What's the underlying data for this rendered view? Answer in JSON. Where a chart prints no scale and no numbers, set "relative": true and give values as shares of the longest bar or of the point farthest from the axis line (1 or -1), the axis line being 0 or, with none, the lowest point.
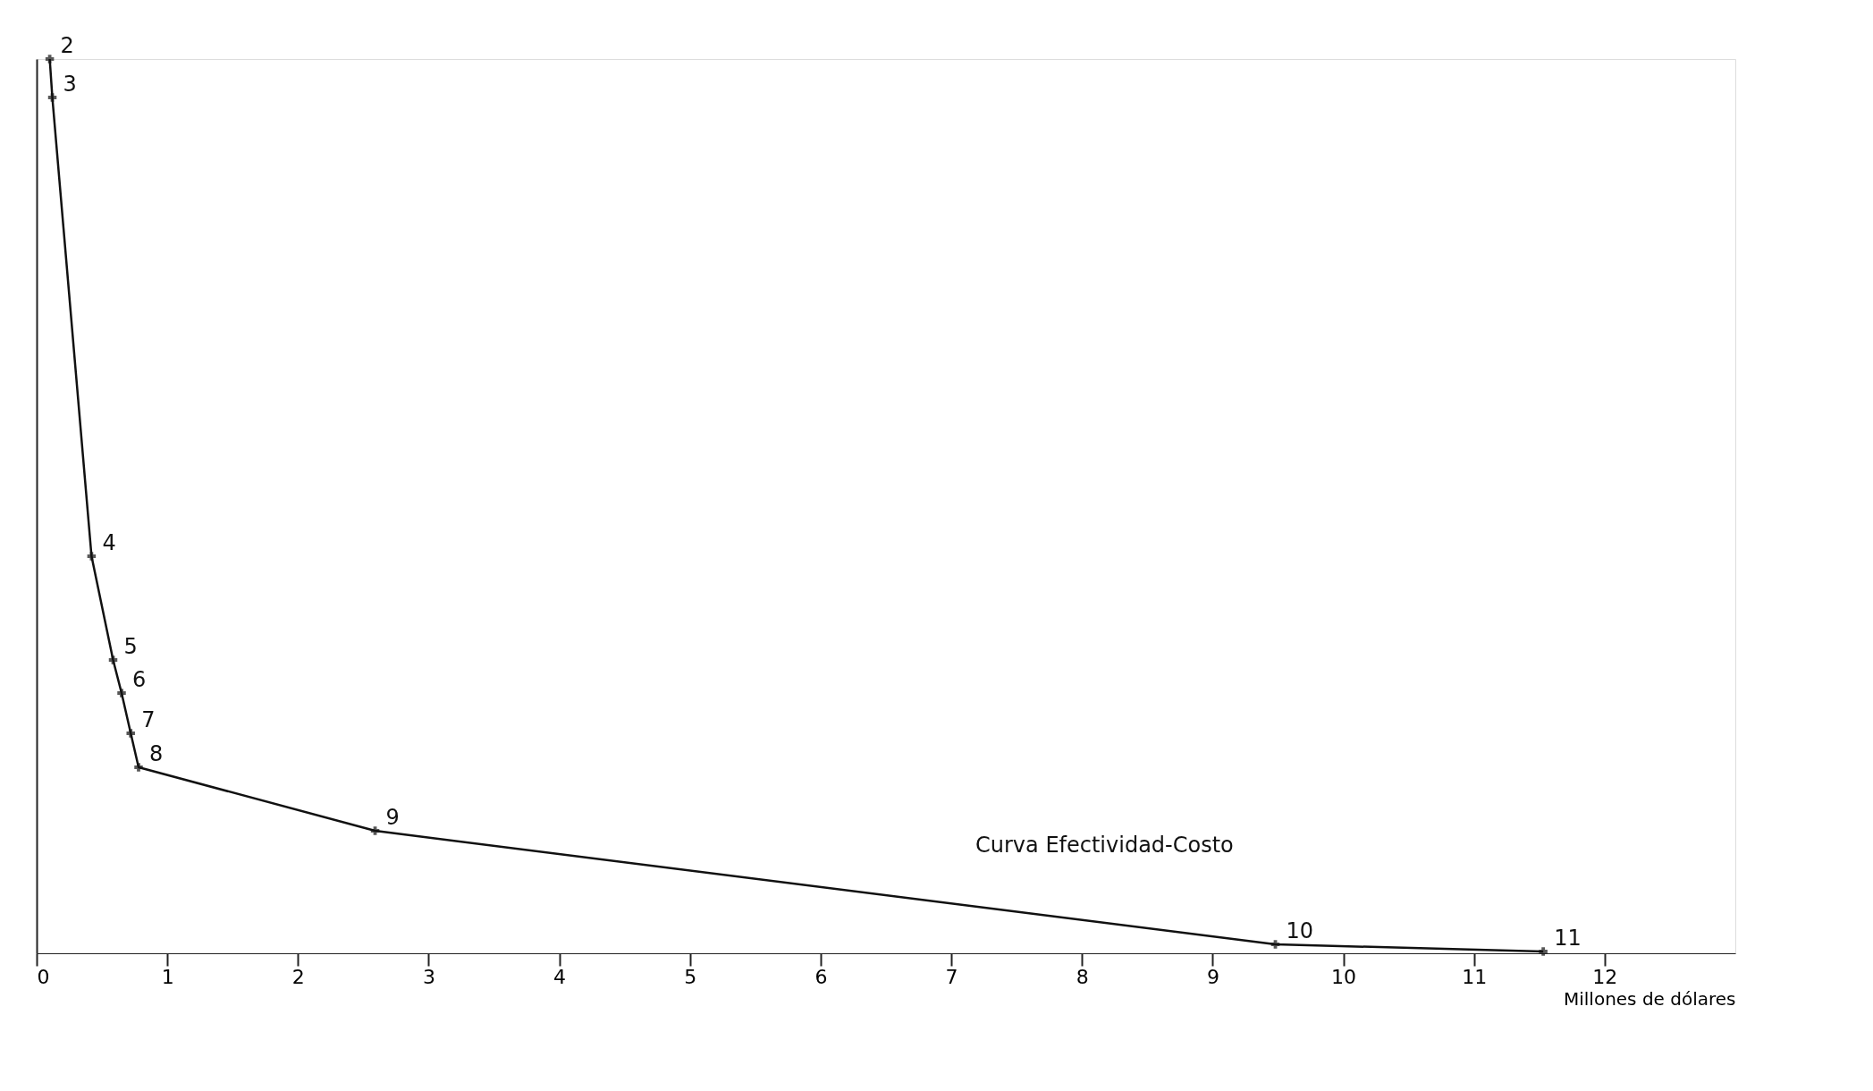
{
  "chart_data": {
    "type": "line",
    "relative": true,
    "xlabel": "Millones de dólares",
    "x": [
      0.1,
      0.12,
      0.42,
      0.585,
      0.65,
      0.72,
      0.78,
      2.59,
      9.48,
      11.53
    ],
    "series": [
      {
        "color": "#111111",
        "values": [
          1,
          0.957,
          0.444,
          0.328,
          0.291,
          0.246,
          0.208,
          0.137,
          0.01,
          0.002
        ]
      }
    ],
    "xlim": [
      0,
      13
    ],
    "xticks": [
      0,
      1,
      2,
      3,
      4,
      5,
      6,
      7,
      8,
      9,
      10,
      11,
      12
    ],
    "marker": "cross",
    "line_style": "solid",
    "grid": false,
    "annotations": [
      {
        "text": "2",
        "x": 0.1,
        "y": 1
      },
      {
        "text": "3",
        "x": 0.12,
        "y": 0.957
      },
      {
        "text": "4",
        "x": 0.42,
        "y": 0.444
      },
      {
        "text": "5",
        "x": 0.585,
        "y": 0.328
      },
      {
        "text": "6",
        "x": 0.65,
        "y": 0.291
      },
      {
        "text": "7",
        "x": 0.72,
        "y": 0.246
      },
      {
        "text": "8",
        "x": 0.78,
        "y": 0.208
      },
      {
        "text": "9",
        "x": 2.59,
        "y": 0.137
      },
      {
        "text": "10",
        "x": 9.48,
        "y": 0.01
      },
      {
        "text": "11",
        "x": 11.53,
        "y": 0.002
      },
      "Curva Efectividad-Costo"
    ]
  }
}
